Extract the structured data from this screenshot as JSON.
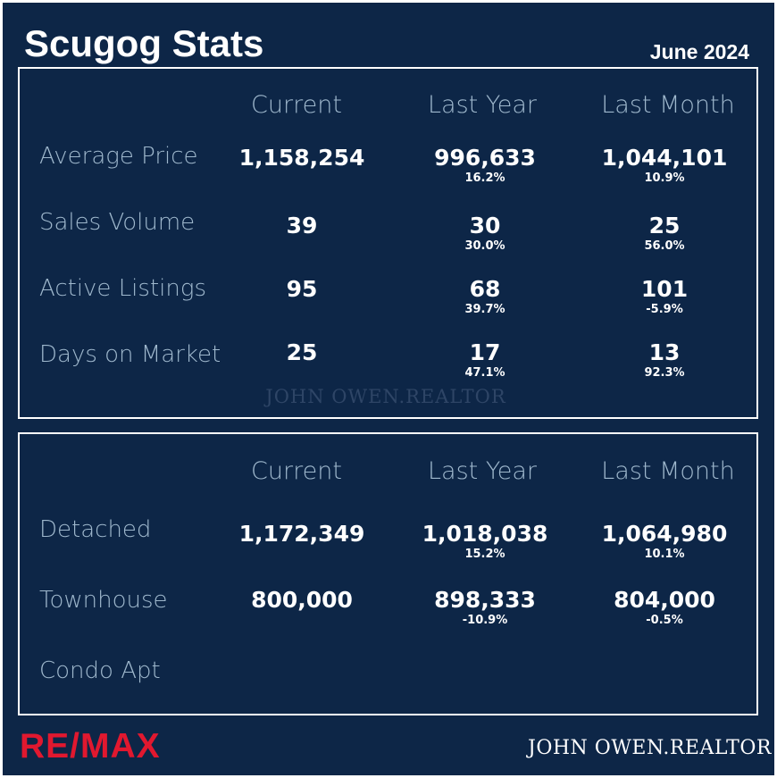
{
  "title": "Scugog Stats",
  "period": "June 2024",
  "columns": [
    "Current",
    "Last Year",
    "Last Month"
  ],
  "market": {
    "rows": [
      {
        "label": "Average Price",
        "current": "1,158,254",
        "last_year": "996,633",
        "last_year_change": "16.2%",
        "last_month": "1,044,101",
        "last_month_change": "10.9%"
      },
      {
        "label": "Sales Volume",
        "current": "39",
        "last_year": "30",
        "last_year_change": "30.0%",
        "last_month": "25",
        "last_month_change": "56.0%"
      },
      {
        "label": "Active Listings",
        "current": "95",
        "last_year": "68",
        "last_year_change": "39.7%",
        "last_month": "101",
        "last_month_change": "-5.9%"
      },
      {
        "label": "Days on Market",
        "current": "25",
        "last_year": "17",
        "last_year_change": "47.1%",
        "last_month": "13",
        "last_month_change": "92.3%"
      }
    ],
    "watermark": "JOHN OWEN.REALTOR"
  },
  "property_types": {
    "rows": [
      {
        "label": "Detached",
        "current": "1,172,349",
        "last_year": "1,018,038",
        "last_year_change": "15.2%",
        "last_month": "1,064,980",
        "last_month_change": "10.1%"
      },
      {
        "label": "Townhouse",
        "current": "800,000",
        "last_year": "898,333",
        "last_year_change": "-10.9%",
        "last_month": "804,000",
        "last_month_change": "-0.5%"
      },
      {
        "label": "Condo Apt",
        "current": "",
        "last_year": "",
        "last_year_change": "",
        "last_month": "",
        "last_month_change": ""
      }
    ]
  },
  "footer": {
    "logo_text": "RE/MAX",
    "brand": "JOHN OWEN.REALTOR"
  },
  "colors": {
    "background": "#0d2647",
    "label": "#9fb8cd",
    "value": "#ffffff",
    "logo": "#e1182f"
  }
}
